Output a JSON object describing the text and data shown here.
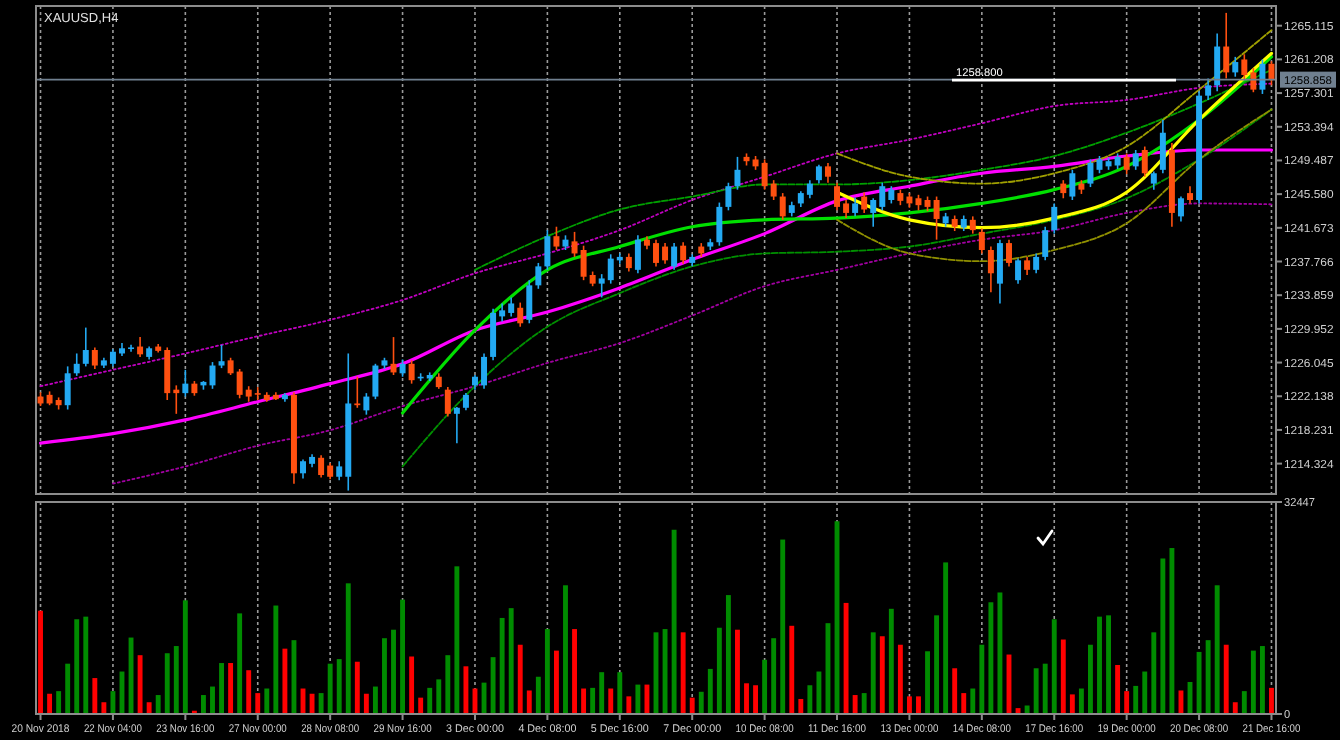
{
  "chart_data": [
    {
      "type": "candlestick",
      "title": "XAUUSD,H4",
      "categories": [
        "20 Nov 2018",
        null,
        null,
        null,
        null,
        null,
        null,
        null,
        "22 Nov 04:00",
        null,
        null,
        null,
        null,
        null,
        null,
        null,
        "23 Nov 16:00",
        null,
        null,
        null,
        null,
        null,
        null,
        null,
        "27 Nov 00:00",
        null,
        null,
        null,
        null,
        null,
        null,
        null,
        "28 Nov 08:00",
        null,
        null,
        null,
        null,
        null,
        null,
        null,
        "29 Nov 16:00",
        null,
        null,
        null,
        null,
        null,
        null,
        null,
        "3 Dec 00:00",
        null,
        null,
        null,
        null,
        null,
        null,
        null,
        "4 Dec 08:00",
        null,
        null,
        null,
        null,
        null,
        null,
        null,
        "5 Dec 16:00",
        null,
        null,
        null,
        null,
        null,
        null,
        null,
        "7 Dec 00:00",
        null,
        null,
        null,
        null,
        null,
        null,
        null,
        "10 Dec 08:00",
        null,
        null,
        null,
        null,
        null,
        null,
        null,
        "11 Dec 16:00",
        null,
        null,
        null,
        null,
        null,
        null,
        null,
        "13 Dec 00:00",
        null,
        null,
        null,
        null,
        null,
        null,
        null,
        "14 Dec 08:00",
        null,
        null,
        null,
        null,
        null,
        null,
        null,
        "17 Dec 16:00",
        null,
        null,
        null,
        null,
        null,
        null,
        null,
        "19 Dec 00:00",
        null,
        null,
        null,
        null,
        null,
        null,
        null,
        "20 Dec 08:00",
        null,
        null,
        null,
        null,
        null,
        null,
        null,
        "21 Dec 16:00"
      ],
      "ohlc": [
        [
          1222.1,
          1222.6,
          1221.0,
          1221.3
        ],
        [
          1222.3,
          1222.7,
          1221.1,
          1221.3
        ],
        [
          1221.7,
          1222.0,
          1220.6,
          1221.1
        ],
        [
          1221.1,
          1225.6,
          1220.6,
          1224.8
        ],
        [
          1224.8,
          1227.1,
          1224.5,
          1225.9
        ],
        [
          1225.9,
          1230.1,
          1225.6,
          1227.5
        ],
        [
          1227.5,
          1227.8,
          1225.3,
          1225.7
        ],
        [
          1225.7,
          1226.6,
          1225.4,
          1226.3
        ],
        [
          1225.9,
          1227.6,
          1225.6,
          1227.3
        ],
        [
          1227.1,
          1228.3,
          1226.8,
          1227.7
        ],
        [
          1227.7,
          1228.1,
          1227.3,
          1227.8
        ],
        [
          1227.9,
          1229.0,
          1226.7,
          1227.0
        ],
        [
          1226.7,
          1227.9,
          1226.4,
          1227.7
        ],
        [
          1227.9,
          1228.2,
          1227.2,
          1227.4
        ],
        [
          1227.5,
          1227.8,
          1221.7,
          1222.5
        ],
        [
          1222.9,
          1223.4,
          1220.1,
          1222.5
        ],
        [
          1222.5,
          1225.2,
          1222.1,
          1223.6
        ],
        [
          1223.6,
          1223.9,
          1222.2,
          1222.5
        ],
        [
          1223.4,
          1223.9,
          1222.9,
          1223.8
        ],
        [
          1223.4,
          1226.1,
          1223.0,
          1225.7
        ],
        [
          1225.7,
          1228.1,
          1225.4,
          1226.2
        ],
        [
          1226.3,
          1226.6,
          1224.6,
          1224.8
        ],
        [
          1225.0,
          1225.3,
          1221.9,
          1222.3
        ],
        [
          1222.9,
          1223.3,
          1221.5,
          1222.1
        ],
        [
          1222.5,
          1223.2,
          1221.7,
          1222.4
        ],
        [
          1222.3,
          1222.6,
          1221.5,
          1221.7
        ],
        [
          1222.3,
          1222.6,
          1221.7,
          1221.8
        ],
        [
          1221.8,
          1222.5,
          1221.5,
          1222.3
        ],
        [
          1222.3,
          1222.6,
          1212.0,
          1213.2
        ],
        [
          1213.2,
          1214.8,
          1212.6,
          1214.6
        ],
        [
          1214.3,
          1215.4,
          1213.9,
          1215.1
        ],
        [
          1215.0,
          1215.3,
          1212.7,
          1213.0
        ],
        [
          1214.1,
          1214.4,
          1212.5,
          1212.8
        ],
        [
          1212.8,
          1214.6,
          1212.4,
          1214.0
        ],
        [
          1212.8,
          1227.1,
          1211.2,
          1221.3
        ],
        [
          1221.3,
          1224.4,
          1220.8,
          1221.1
        ],
        [
          1220.5,
          1222.5,
          1220.0,
          1222.1
        ],
        [
          1222.1,
          1225.9,
          1221.8,
          1225.7
        ],
        [
          1225.7,
          1226.6,
          1225.3,
          1226.3
        ],
        [
          1225.9,
          1229.0,
          1224.6,
          1224.9
        ],
        [
          1224.8,
          1226.4,
          1224.4,
          1225.9
        ],
        [
          1225.9,
          1226.3,
          1223.6,
          1224.0
        ],
        [
          1224.4,
          1224.8,
          1223.9,
          1224.4
        ],
        [
          1224.2,
          1224.9,
          1223.9,
          1224.6
        ],
        [
          1224.4,
          1224.8,
          1223.0,
          1223.2
        ],
        [
          1222.9,
          1223.2,
          1219.8,
          1220.1
        ],
        [
          1220.1,
          1220.9,
          1216.7,
          1220.8
        ],
        [
          1220.8,
          1222.5,
          1220.5,
          1222.3
        ],
        [
          1223.4,
          1224.6,
          1222.9,
          1224.4
        ],
        [
          1223.4,
          1227.1,
          1223.0,
          1226.7
        ],
        [
          1226.7,
          1232.3,
          1226.3,
          1231.8
        ],
        [
          1231.4,
          1232.9,
          1230.8,
          1232.1
        ],
        [
          1231.8,
          1233.6,
          1231.4,
          1232.9
        ],
        [
          1232.4,
          1233.0,
          1230.2,
          1230.6
        ],
        [
          1231.0,
          1235.6,
          1230.6,
          1235.0
        ],
        [
          1235.0,
          1237.6,
          1234.6,
          1237.2
        ],
        [
          1237.2,
          1241.4,
          1236.8,
          1240.7
        ],
        [
          1240.7,
          1241.8,
          1239.1,
          1239.5
        ],
        [
          1239.5,
          1240.8,
          1239.1,
          1240.3
        ],
        [
          1240.1,
          1241.2,
          1238.3,
          1238.7
        ],
        [
          1239.1,
          1239.6,
          1235.6,
          1236.0
        ],
        [
          1236.2,
          1236.6,
          1234.9,
          1235.2
        ],
        [
          1235.2,
          1236.3,
          1233.6,
          1235.8
        ],
        [
          1235.6,
          1238.6,
          1235.2,
          1238.1
        ],
        [
          1237.9,
          1238.7,
          1237.5,
          1238.3
        ],
        [
          1238.3,
          1238.7,
          1236.6,
          1237.0
        ],
        [
          1236.8,
          1240.8,
          1236.4,
          1240.3
        ],
        [
          1240.3,
          1240.7,
          1239.2,
          1239.6
        ],
        [
          1239.9,
          1240.3,
          1237.2,
          1237.6
        ],
        [
          1239.5,
          1239.9,
          1237.5,
          1237.9
        ],
        [
          1237.2,
          1239.9,
          1236.8,
          1239.5
        ],
        [
          1239.6,
          1240.0,
          1237.5,
          1237.9
        ],
        [
          1237.6,
          1238.6,
          1237.2,
          1238.3
        ],
        [
          1239.5,
          1239.9,
          1238.3,
          1238.7
        ],
        [
          1239.5,
          1240.4,
          1239.1,
          1240.0
        ],
        [
          1240.0,
          1244.6,
          1239.6,
          1244.1
        ],
        [
          1244.1,
          1246.9,
          1243.7,
          1246.5
        ],
        [
          1246.5,
          1249.9,
          1246.1,
          1248.4
        ],
        [
          1249.9,
          1250.3,
          1248.9,
          1249.4
        ],
        [
          1249.6,
          1250.0,
          1248.4,
          1248.8
        ],
        [
          1249.2,
          1249.6,
          1246.1,
          1246.5
        ],
        [
          1246.8,
          1247.2,
          1244.9,
          1245.3
        ],
        [
          1245.3,
          1245.7,
          1242.6,
          1243.0
        ],
        [
          1243.4,
          1244.7,
          1243.0,
          1244.3
        ],
        [
          1244.5,
          1245.9,
          1244.1,
          1245.7
        ],
        [
          1245.5,
          1247.2,
          1245.1,
          1246.8
        ],
        [
          1247.2,
          1249.0,
          1246.8,
          1248.8
        ],
        [
          1248.8,
          1249.2,
          1246.9,
          1247.6
        ],
        [
          1246.5,
          1246.9,
          1243.7,
          1244.1
        ],
        [
          1244.5,
          1244.9,
          1242.8,
          1243.4
        ],
        [
          1243.4,
          1245.2,
          1243.0,
          1244.5
        ],
        [
          1245.3,
          1245.8,
          1243.4,
          1243.8
        ],
        [
          1243.4,
          1245.1,
          1241.8,
          1244.9
        ],
        [
          1244.1,
          1246.9,
          1243.7,
          1246.5
        ],
        [
          1244.9,
          1246.5,
          1244.5,
          1246.1
        ],
        [
          1245.7,
          1246.1,
          1244.3,
          1244.8
        ],
        [
          1245.3,
          1245.7,
          1244.0,
          1244.5
        ],
        [
          1245.1,
          1245.5,
          1243.7,
          1244.3
        ],
        [
          1244.9,
          1245.3,
          1243.6,
          1244.1
        ],
        [
          1244.9,
          1245.3,
          1240.3,
          1242.7
        ],
        [
          1242.2,
          1243.4,
          1241.8,
          1243.0
        ],
        [
          1242.7,
          1243.1,
          1241.3,
          1241.8
        ],
        [
          1241.7,
          1243.1,
          1241.3,
          1242.7
        ],
        [
          1242.6,
          1243.0,
          1241.0,
          1241.4
        ],
        [
          1241.2,
          1241.6,
          1238.7,
          1239.1
        ],
        [
          1239.1,
          1239.5,
          1234.2,
          1236.4
        ],
        [
          1235.2,
          1240.3,
          1232.9,
          1239.9
        ],
        [
          1239.9,
          1240.3,
          1237.2,
          1237.6
        ],
        [
          1235.6,
          1238.1,
          1235.2,
          1237.9
        ],
        [
          1237.9,
          1238.3,
          1236.2,
          1236.8
        ],
        [
          1236.8,
          1238.7,
          1236.4,
          1238.3
        ],
        [
          1238.3,
          1241.8,
          1237.9,
          1241.4
        ],
        [
          1241.4,
          1244.5,
          1241.0,
          1244.1
        ],
        [
          1246.8,
          1247.2,
          1245.1,
          1245.7
        ],
        [
          1245.3,
          1248.4,
          1244.9,
          1248.0
        ],
        [
          1246.8,
          1247.2,
          1245.6,
          1246.1
        ],
        [
          1246.8,
          1249.6,
          1246.4,
          1249.2
        ],
        [
          1248.4,
          1250.0,
          1248.0,
          1249.6
        ],
        [
          1248.8,
          1249.8,
          1248.4,
          1249.4
        ],
        [
          1248.9,
          1250.3,
          1248.5,
          1249.9
        ],
        [
          1249.9,
          1250.3,
          1247.9,
          1248.4
        ],
        [
          1248.8,
          1250.7,
          1248.4,
          1250.3
        ],
        [
          1250.7,
          1251.1,
          1247.6,
          1248.0
        ],
        [
          1246.8,
          1248.2,
          1246.1,
          1248.0
        ],
        [
          1248.4,
          1254.2,
          1248.0,
          1252.7
        ],
        [
          1250.7,
          1251.5,
          1241.8,
          1243.4
        ],
        [
          1243.0,
          1245.3,
          1242.4,
          1245.1
        ],
        [
          1245.7,
          1246.5,
          1244.5,
          1244.9
        ],
        [
          1244.9,
          1257.5,
          1244.5,
          1257.0
        ],
        [
          1257.0,
          1259.0,
          1256.5,
          1258.2
        ],
        [
          1258.2,
          1264.2,
          1257.5,
          1262.7
        ],
        [
          1262.7,
          1266.6,
          1259.0,
          1259.7
        ],
        [
          1259.7,
          1261.5,
          1259.2,
          1260.9
        ],
        [
          1261.2,
          1261.8,
          1258.8,
          1259.4
        ],
        [
          1259.7,
          1260.2,
          1257.4,
          1257.7
        ],
        [
          1257.7,
          1261.2,
          1257.2,
          1260.7
        ],
        [
          1260.7,
          1261.0,
          1258.2,
          1258.9
        ]
      ],
      "colors": [
        "#ff5010",
        "#ff5010",
        "#ff5010",
        "#23a9f2",
        "#23a9f2",
        "#23a9f2",
        "#ff5010",
        "#23a9f2",
        "#23a9f2",
        "#23a9f2",
        "#23a9f2",
        "#ff5010",
        "#23a9f2",
        "#ff5010",
        "#ff5010",
        "#ff5010",
        "#23a9f2",
        "#ff5010",
        "#23a9f2",
        "#23a9f2",
        "#23a9f2",
        "#ff5010",
        "#ff5010",
        "#ff5010",
        "#ff5010",
        "#ff5010",
        "#ff5010",
        "#23a9f2",
        "#ff5010",
        "#23a9f2",
        "#23a9f2",
        "#ff5010",
        "#ff5010",
        "#23a9f2",
        "#23a9f2",
        "#ff5010",
        "#23a9f2",
        "#23a9f2",
        "#23a9f2",
        "#ff5010",
        "#23a9f2",
        "#ff5010",
        "#23a9f2",
        "#23a9f2",
        "#ff5010",
        "#ff5010",
        "#23a9f2",
        "#23a9f2",
        "#23a9f2",
        "#23a9f2",
        "#23a9f2",
        "#23a9f2",
        "#23a9f2",
        "#ff5010",
        "#23a9f2",
        "#23a9f2",
        "#23a9f2",
        "#ff5010",
        "#23a9f2",
        "#ff5010",
        "#ff5010",
        "#ff5010",
        "#23a9f2",
        "#23a9f2",
        "#23a9f2",
        "#ff5010",
        "#23a9f2",
        "#ff5010",
        "#ff5010",
        "#ff5010",
        "#23a9f2",
        "#ff5010",
        "#23a9f2",
        "#ff5010",
        "#23a9f2",
        "#23a9f2",
        "#23a9f2",
        "#23a9f2",
        "#ff5010",
        "#ff5010",
        "#ff5010",
        "#ff5010",
        "#ff5010",
        "#23a9f2",
        "#23a9f2",
        "#23a9f2",
        "#23a9f2",
        "#ff5010",
        "#ff5010",
        "#ff5010",
        "#23a9f2",
        "#ff5010",
        "#23a9f2",
        "#23a9f2",
        "#23a9f2",
        "#ff5010",
        "#ff5010",
        "#ff5010",
        "#ff5010",
        "#ff5010",
        "#23a9f2",
        "#ff5010",
        "#23a9f2",
        "#ff5010",
        "#ff5010",
        "#ff5010",
        "#23a9f2",
        "#ff5010",
        "#23a9f2",
        "#ff5010",
        "#23a9f2",
        "#23a9f2",
        "#23a9f2",
        "#ff5010",
        "#23a9f2",
        "#ff5010",
        "#23a9f2",
        "#23a9f2",
        "#23a9f2",
        "#23a9f2",
        "#ff5010",
        "#23a9f2",
        "#ff5010",
        "#23a9f2",
        "#23a9f2",
        "#ff5010",
        "#23a9f2",
        "#ff5010",
        "#23a9f2",
        "#23a9f2",
        "#23a9f2",
        "#ff5010",
        "#23a9f2",
        "#ff5010",
        "#ff5010",
        "#23a9f2",
        "#ff5010"
      ],
      "series": [
        {
          "type": "line",
          "color": "#ff00ff",
          "line_style": "solid",
          "x": [
            "20 Nov 2018",
            "22 Nov 04:00",
            "23 Nov 16:00",
            "27 Nov 00:00",
            "28 Nov 08:00",
            "29 Nov 16:00",
            "3 Dec 00:00",
            "4 Dec 08:00",
            "5 Dec 16:00",
            "7 Dec 00:00",
            "10 Dec 08:00",
            "11 Dec 16:00",
            "13 Dec 00:00",
            "14 Dec 08:00",
            "17 Dec 16:00",
            "19 Dec 00:00",
            "20 Dec 08:00",
            "21 Dec 16:00"
          ],
          "values": [
            1216.7,
            1217.8,
            1219.4,
            1221.5,
            1223.6,
            1225.9,
            1229.8,
            1231.9,
            1234.7,
            1238.0,
            1241.0,
            1244.8,
            1246.5,
            1248.0,
            1248.8,
            1250.0,
            1250.7,
            1250.7
          ]
        },
        {
          "type": "line",
          "color": "#a000a0",
          "line_style": "dotted",
          "x": [
            "22 Nov 04:00",
            "23 Nov 16:00",
            "27 Nov 00:00",
            "28 Nov 08:00",
            "29 Nov 16:00",
            "3 Dec 00:00",
            "4 Dec 08:00",
            "5 Dec 16:00",
            "7 Dec 00:00",
            "10 Dec 08:00",
            "11 Dec 16:00",
            "13 Dec 00:00",
            "14 Dec 08:00",
            "17 Dec 16:00",
            "19 Dec 00:00",
            "20 Dec 08:00",
            "21 Dec 16:00"
          ],
          "values": [
            1212.0,
            1214.0,
            1216.4,
            1218.2,
            1221.0,
            1223.3,
            1226.0,
            1228.3,
            1231.5,
            1234.9,
            1236.8,
            1238.7,
            1240.3,
            1241.4,
            1243.4,
            1244.5,
            1244.4
          ]
        },
        {
          "type": "line",
          "color": "#c000c0",
          "line_style": "dotted",
          "x": [
            "20 Nov 2018",
            "22 Nov 04:00",
            "23 Nov 16:00",
            "27 Nov 00:00",
            "28 Nov 08:00",
            "29 Nov 16:00",
            "3 Dec 00:00",
            "4 Dec 08:00",
            "5 Dec 16:00",
            "7 Dec 00:00",
            "10 Dec 08:00",
            "11 Dec 16:00",
            "13 Dec 00:00",
            "14 Dec 08:00",
            "17 Dec 16:00",
            "19 Dec 00:00",
            "20 Dec 08:00",
            "21 Dec 16:00"
          ],
          "values": [
            1223.3,
            1225.2,
            1227.1,
            1229.1,
            1231.0,
            1233.3,
            1236.4,
            1238.7,
            1241.4,
            1244.9,
            1247.6,
            1250.3,
            1251.9,
            1253.8,
            1255.8,
            1256.5,
            1257.9,
            1258.4
          ]
        },
        {
          "type": "line",
          "color": "#00e000",
          "line_style": "solid",
          "x": [
            "29 Nov 16:00",
            "3 Dec 00:00",
            "4 Dec 08:00",
            "5 Dec 16:00",
            "7 Dec 00:00",
            "10 Dec 08:00",
            "11 Dec 16:00",
            "13 Dec 00:00",
            "14 Dec 08:00",
            "17 Dec 16:00",
            "19 Dec 00:00",
            "20 Dec 08:00",
            "21 Dec 16:00"
          ],
          "values": [
            1220.2,
            1229.8,
            1236.8,
            1239.5,
            1241.8,
            1242.6,
            1242.8,
            1243.4,
            1244.5,
            1246.1,
            1248.8,
            1254.2,
            1261.5
          ]
        },
        {
          "type": "line",
          "color": "#00a000",
          "line_style": "dashed",
          "x": [
            "3 Dec 00:00",
            "4 Dec 08:00",
            "5 Dec 16:00",
            "7 Dec 00:00",
            "10 Dec 08:00",
            "11 Dec 16:00",
            "13 Dec 00:00",
            "14 Dec 08:00",
            "17 Dec 16:00",
            "19 Dec 00:00",
            "20 Dec 08:00",
            "21 Dec 16:00"
          ],
          "values": [
            1236.8,
            1240.7,
            1243.8,
            1245.3,
            1246.7,
            1246.7,
            1247.2,
            1248.4,
            1250.0,
            1252.7,
            1256.1,
            1260.0
          ]
        },
        {
          "type": "line",
          "color": "#009000",
          "line_style": "dashed",
          "x": [
            "29 Nov 16:00",
            "3 Dec 00:00",
            "4 Dec 08:00",
            "5 Dec 16:00",
            "7 Dec 00:00",
            "10 Dec 08:00",
            "11 Dec 16:00",
            "13 Dec 00:00",
            "14 Dec 08:00",
            "17 Dec 16:00",
            "19 Dec 00:00",
            "20 Dec 08:00",
            "21 Dec 16:00"
          ],
          "values": [
            1214.0,
            1223.3,
            1230.2,
            1234.1,
            1237.2,
            1238.7,
            1238.9,
            1239.5,
            1241.0,
            1242.6,
            1245.1,
            1249.6,
            1255.4
          ]
        },
        {
          "type": "line",
          "color": "#ffff00",
          "line_style": "solid",
          "x": [
            "11 Dec 16:00",
            "13 Dec 00:00",
            "14 Dec 08:00",
            "17 Dec 16:00",
            "19 Dec 00:00",
            "20 Dec 08:00",
            "21 Dec 16:00"
          ],
          "values": [
            1245.8,
            1242.6,
            1241.7,
            1242.8,
            1245.8,
            1254.2,
            1261.9
          ]
        },
        {
          "type": "line",
          "color": "#a0a000",
          "line_style": "dashed",
          "x": [
            "11 Dec 16:00",
            "13 Dec 00:00",
            "14 Dec 08:00",
            "17 Dec 16:00",
            "19 Dec 00:00",
            "20 Dec 08:00",
            "21 Dec 16:00"
          ],
          "values": [
            1250.3,
            1247.6,
            1246.8,
            1248.0,
            1251.1,
            1257.7,
            1264.6
          ]
        },
        {
          "type": "line",
          "color": "#909000",
          "line_style": "dashed",
          "x": [
            "11 Dec 16:00",
            "13 Dec 00:00",
            "14 Dec 08:00",
            "17 Dec 16:00",
            "19 Dec 00:00",
            "20 Dec 08:00",
            "21 Dec 16:00"
          ],
          "values": [
            1242.6,
            1238.7,
            1237.8,
            1239.1,
            1242.2,
            1249.6,
            1255.4
          ]
        }
      ],
      "ylim": [
        1210.8,
        1267.4
      ],
      "yticks": [
        1265.115,
        1261.208,
        1257.301,
        1253.394,
        1249.487,
        {
          "value": 1245.58,
          "label": "1245.580"
        },
        1241.673,
        1237.766,
        1233.859,
        1229.952,
        1226.045,
        1222.138,
        1218.231,
        1214.324
      ],
      "ref_lines": [
        {
          "axis": "y",
          "value": 1258.858,
          "label": "1258.858",
          "color": "#708090"
        },
        {
          "axis": "y",
          "value": 1258.8,
          "label": "1258.800",
          "color": "#ffffff"
        }
      ],
      "grid": "x",
      "tick_labels": "y"
    },
    {
      "type": "bar",
      "categories": [
        "20 Nov 2018",
        null,
        null,
        null,
        null,
        null,
        null,
        null,
        "22 Nov 04:00",
        null,
        null,
        null,
        null,
        null,
        null,
        null,
        "23 Nov 16:00",
        null,
        null,
        null,
        null,
        null,
        null,
        null,
        "27 Nov 00:00",
        null,
        null,
        null,
        null,
        null,
        null,
        null,
        "28 Nov 08:00",
        null,
        null,
        null,
        null,
        null,
        null,
        null,
        "29 Nov 16:00",
        null,
        null,
        null,
        null,
        null,
        null,
        null,
        "3 Dec 00:00",
        null,
        null,
        null,
        null,
        null,
        null,
        null,
        "4 Dec 08:00",
        null,
        null,
        null,
        null,
        null,
        null,
        null,
        "5 Dec 16:00",
        null,
        null,
        null,
        null,
        null,
        null,
        null,
        "7 Dec 00:00",
        null,
        null,
        null,
        null,
        null,
        null,
        null,
        "10 Dec 08:00",
        null,
        null,
        null,
        null,
        null,
        null,
        null,
        "11 Dec 16:00",
        null,
        null,
        null,
        null,
        null,
        null,
        null,
        "13 Dec 00:00",
        null,
        null,
        null,
        null,
        null,
        null,
        null,
        "14 Dec 08:00",
        null,
        null,
        null,
        null,
        null,
        null,
        null,
        "17 Dec 16:00",
        null,
        null,
        null,
        null,
        null,
        null,
        null,
        "19 Dec 00:00",
        null,
        null,
        null,
        null,
        null,
        null,
        null,
        "20 Dec 08:00",
        null,
        null,
        null,
        null,
        null,
        null,
        null,
        "21 Dec 16:00"
      ],
      "values": [
        15800,
        3100,
        3500,
        7700,
        14500,
        14900,
        5500,
        1800,
        3500,
        6500,
        11700,
        9000,
        1800,
        2900,
        9300,
        10400,
        17400,
        500,
        2900,
        4200,
        7800,
        7800,
        15400,
        6700,
        3200,
        3900,
        16600,
        10000,
        11300,
        3900,
        3100,
        3200,
        7700,
        8400,
        20000,
        8000,
        3100,
        4200,
        11600,
        12900,
        17500,
        8800,
        2500,
        4000,
        5300,
        9000,
        22600,
        7300,
        3900,
        4800,
        8700,
        14700,
        16200,
        10600,
        3600,
        5700,
        13000,
        9700,
        19700,
        13000,
        3900,
        4000,
        6400,
        3900,
        6400,
        2700,
        4500,
        4500,
        12500,
        13000,
        28200,
        12500,
        2500,
        3400,
        6900,
        13200,
        18200,
        12900,
        4700,
        4400,
        8300,
        11600,
        26700,
        13500,
        2300,
        4400,
        6500,
        13900,
        29500,
        17000,
        2900,
        3200,
        12500,
        11900,
        16100,
        10600,
        2700,
        2700,
        9600,
        15100,
        23200,
        7000,
        3200,
        3900,
        10600,
        17100,
        18600,
        9100,
        900,
        1300,
        7000,
        7700,
        14500,
        11400,
        3000,
        3900,
        10600,
        14900,
        15100,
        7500,
        3500,
        4300,
        6500,
        12500,
        23800,
        25400,
        3600,
        4900,
        9500,
        11300,
        19700,
        10600,
        1800,
        3500,
        9700,
        10400,
        4000
      ],
      "colors": [
        "#ff0000",
        "#ff0000",
        "#008c00",
        "#008c00",
        "#008c00",
        "#008c00",
        "#ff0000",
        "#ff0000",
        "#008c00",
        "#008c00",
        "#008c00",
        "#ff0000",
        "#ff0000",
        "#008c00",
        "#008c00",
        "#008c00",
        "#008c00",
        "#ff0000",
        "#008c00",
        "#008c00",
        "#008c00",
        "#ff0000",
        "#008c00",
        "#ff0000",
        "#ff0000",
        "#008c00",
        "#008c00",
        "#ff0000",
        "#008c00",
        "#ff0000",
        "#ff0000",
        "#008c00",
        "#008c00",
        "#008c00",
        "#008c00",
        "#ff0000",
        "#ff0000",
        "#008c00",
        "#008c00",
        "#008c00",
        "#008c00",
        "#ff0000",
        "#ff0000",
        "#008c00",
        "#008c00",
        "#008c00",
        "#008c00",
        "#ff0000",
        "#ff0000",
        "#008c00",
        "#008c00",
        "#008c00",
        "#008c00",
        "#ff0000",
        "#ff0000",
        "#008c00",
        "#008c00",
        "#ff0000",
        "#008c00",
        "#ff0000",
        "#ff0000",
        "#008c00",
        "#008c00",
        "#ff0000",
        "#008c00",
        "#ff0000",
        "#008c00",
        "#ff0000",
        "#008c00",
        "#008c00",
        "#008c00",
        "#ff0000",
        "#ff0000",
        "#008c00",
        "#008c00",
        "#008c00",
        "#008c00",
        "#ff0000",
        "#ff0000",
        "#ff0000",
        "#008c00",
        "#008c00",
        "#008c00",
        "#ff0000",
        "#ff0000",
        "#008c00",
        "#008c00",
        "#008c00",
        "#008c00",
        "#ff0000",
        "#ff0000",
        "#008c00",
        "#008c00",
        "#ff0000",
        "#008c00",
        "#ff0000",
        "#ff0000",
        "#ff0000",
        "#008c00",
        "#008c00",
        "#008c00",
        "#ff0000",
        "#ff0000",
        "#008c00",
        "#008c00",
        "#008c00",
        "#008c00",
        "#ff0000",
        "#ff0000",
        "#008c00",
        "#008c00",
        "#008c00",
        "#008c00",
        "#ff0000",
        "#ff0000",
        "#008c00",
        "#008c00",
        "#008c00",
        "#008c00",
        "#ff0000",
        "#ff0000",
        "#008c00",
        "#008c00",
        "#008c00",
        "#008c00",
        "#008c00",
        "#ff0000",
        "#008c00",
        "#008c00",
        "#008c00",
        "#008c00",
        "#ff0000",
        "#ff0000",
        "#008c00",
        "#008c00",
        "#008c00",
        "#ff0000"
      ],
      "ylim": [
        0,
        32447
      ],
      "yticks": [
        0,
        32447
      ],
      "grid": "x"
    }
  ]
}
